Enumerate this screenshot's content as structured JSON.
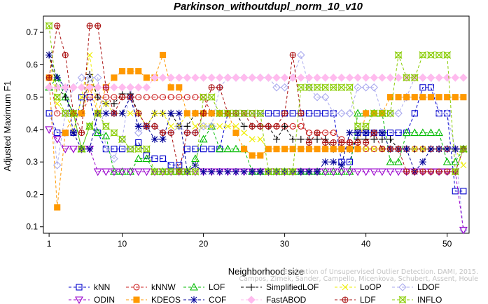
{
  "chart_data": {
    "type": "line",
    "title": "Parkinson_withoutdupl_norm_10_v10",
    "xlabel": "Neighborhood size",
    "ylabel": "Adjusted Maximum F1",
    "xlim": [
      1,
      52
    ],
    "ylim": [
      0.08,
      0.75
    ],
    "xticks": [
      1,
      10,
      20,
      30,
      40,
      50
    ],
    "yticks": [
      0.1,
      0.2,
      0.3,
      0.4,
      0.5,
      0.6,
      0.7
    ],
    "grid": false,
    "legend_position": "bottom",
    "x": [
      1,
      2,
      3,
      4,
      5,
      6,
      7,
      8,
      9,
      10,
      11,
      12,
      13,
      14,
      15,
      16,
      17,
      18,
      19,
      20,
      21,
      22,
      23,
      24,
      25,
      26,
      27,
      28,
      29,
      30,
      31,
      32,
      33,
      34,
      35,
      36,
      37,
      38,
      39,
      40,
      41,
      42,
      43,
      44,
      45,
      46,
      47,
      48,
      49,
      50,
      51,
      52
    ],
    "series": [
      {
        "name": "kNN",
        "color": "#0000cc",
        "marker": "square",
        "values": [
          0.45,
          0.39,
          0.39,
          0.39,
          0.5,
          0.5,
          0.39,
          0.34,
          0.34,
          0.34,
          0.34,
          0.36,
          0.32,
          0.31,
          0.31,
          0.29,
          0.29,
          0.34,
          0.34,
          0.34,
          0.34,
          0.34,
          0.45,
          0.45,
          0.45,
          0.45,
          0.45,
          0.45,
          0.45,
          0.45,
          0.45,
          0.45,
          0.45,
          0.45,
          0.45,
          0.45,
          0.3,
          0.3,
          0.39,
          0.39,
          0.39,
          0.39,
          0.39,
          0.39,
          0.39,
          0.45,
          0.53,
          0.53,
          0.45,
          0.45,
          0.21,
          0.21
        ]
      },
      {
        "name": "kNNW",
        "color": "#cc2222",
        "marker": "circle",
        "values": [
          0.56,
          0.45,
          0.45,
          0.45,
          0.45,
          0.5,
          0.5,
          0.5,
          0.5,
          0.5,
          0.5,
          0.5,
          0.5,
          0.5,
          0.5,
          0.5,
          0.5,
          0.5,
          0.5,
          0.5,
          0.45,
          0.45,
          0.45,
          0.45,
          0.45,
          0.45,
          0.41,
          0.41,
          0.41,
          0.41,
          0.41,
          0.41,
          0.39,
          0.39,
          0.39,
          0.39,
          0.37,
          0.36,
          0.34,
          0.34,
          0.34,
          0.34,
          0.34,
          0.34,
          0.34,
          0.34,
          0.34,
          0.34,
          0.34,
          0.34,
          0.34,
          0.34
        ]
      },
      {
        "name": "LOF",
        "color": "#00bb00",
        "marker": "triangle",
        "values": [
          0.53,
          0.56,
          0.5,
          0.45,
          0.34,
          0.41,
          0.39,
          0.38,
          0.27,
          0.27,
          0.27,
          0.31,
          0.31,
          0.27,
          0.27,
          0.27,
          0.27,
          0.27,
          0.31,
          0.37,
          0.41,
          0.34,
          0.34,
          0.34,
          0.34,
          0.27,
          0.27,
          0.27,
          0.27,
          0.27,
          0.27,
          0.27,
          0.27,
          0.27,
          0.27,
          0.27,
          0.27,
          0.27,
          0.45,
          0.45,
          0.45,
          0.45,
          0.3,
          0.3,
          0.39,
          0.39,
          0.39,
          0.39,
          0.39,
          0.3,
          0.3,
          0.34
        ]
      },
      {
        "name": "SimplifiedLOF",
        "color": "#000000",
        "marker": "plus",
        "values": [
          0.63,
          0.53,
          0.5,
          0.45,
          0.45,
          0.57,
          0.5,
          0.48,
          0.48,
          0.51,
          0.51,
          0.45,
          0.41,
          0.45,
          0.45,
          0.45,
          0.41,
          0.41,
          0.45,
          0.45,
          0.45,
          0.45,
          0.45,
          0.45,
          0.41,
          0.41,
          0.41,
          0.41,
          0.37,
          0.41,
          0.37,
          0.37,
          0.37,
          0.37,
          0.37,
          0.34,
          0.34,
          0.34,
          0.37,
          0.37,
          0.37,
          0.37,
          0.37,
          0.34,
          0.34,
          0.34,
          0.34,
          0.34,
          0.34,
          0.34,
          0.34,
          0.34
        ]
      },
      {
        "name": "LoOP",
        "color": "#eeee00",
        "marker": "x",
        "values": [
          0.63,
          0.48,
          0.45,
          0.39,
          0.5,
          0.63,
          0.45,
          0.48,
          0.45,
          0.45,
          0.45,
          0.45,
          0.41,
          0.45,
          0.45,
          0.41,
          0.41,
          0.45,
          0.41,
          0.41,
          0.41,
          0.41,
          0.41,
          0.41,
          0.39,
          0.37,
          0.37,
          0.34,
          0.34,
          0.34,
          0.34,
          0.34,
          0.34,
          0.34,
          0.34,
          0.34,
          0.34,
          0.34,
          0.34,
          0.34,
          0.34,
          0.34,
          0.34,
          0.34,
          0.34,
          0.34,
          0.34,
          0.34,
          0.34,
          0.34,
          0.34,
          0.29
        ]
      },
      {
        "name": "LDOF",
        "color": "#aaaaee",
        "marker": "diamond",
        "values": [
          0.53,
          0.29,
          0.45,
          0.53,
          0.56,
          0.56,
          0.56,
          0.34,
          0.31,
          0.37,
          0.53,
          0.39,
          0.41,
          0.41,
          0.39,
          0.39,
          0.41,
          0.39,
          0.39,
          0.41,
          0.41,
          0.53,
          0.56,
          0.56,
          0.56,
          0.56,
          0.56,
          0.56,
          0.53,
          0.53,
          0.56,
          0.63,
          0.53,
          0.5,
          0.5,
          0.45,
          0.45,
          0.45,
          0.53,
          0.53,
          0.53,
          0.45,
          0.45,
          0.45,
          0.5,
          0.56,
          0.56,
          0.56,
          0.45,
          0.45,
          0.34,
          0.09
        ]
      },
      {
        "name": "ODIN",
        "color": "#9900cc",
        "marker": "invtriangle",
        "values": [
          0.4,
          0.37,
          0.34,
          0.34,
          0.34,
          0.34,
          0.27,
          0.27,
          0.27,
          0.27,
          0.27,
          0.27,
          0.27,
          0.27,
          0.27,
          0.27,
          0.27,
          0.27,
          0.27,
          0.27,
          0.27,
          0.27,
          0.27,
          0.27,
          0.27,
          0.27,
          0.27,
          0.27,
          0.27,
          0.27,
          0.27,
          0.27,
          0.27,
          0.27,
          0.27,
          0.27,
          0.27,
          0.27,
          0.27,
          0.27,
          0.27,
          0.27,
          0.27,
          0.27,
          0.27,
          0.27,
          0.27,
          0.27,
          0.27,
          0.27,
          0.27,
          0.09
        ]
      },
      {
        "name": "KDEOS",
        "color": "#ff9900",
        "marker": "squarefill",
        "values": [
          0.56,
          0.16,
          0.39,
          0.45,
          0.45,
          0.53,
          0.45,
          0.53,
          0.56,
          0.58,
          0.58,
          0.58,
          0.56,
          0.56,
          0.63,
          0.53,
          0.53,
          0.45,
          0.45,
          0.45,
          0.45,
          0.45,
          0.45,
          0.39,
          0.34,
          0.32,
          0.32,
          0.34,
          0.34,
          0.34,
          0.34,
          0.34,
          0.34,
          0.34,
          0.34,
          0.34,
          0.34,
          0.34,
          0.34,
          0.45,
          0.45,
          0.45,
          0.5,
          0.5,
          0.5,
          0.5,
          0.5,
          0.5,
          0.5,
          0.5,
          0.5,
          0.5
        ]
      },
      {
        "name": "COF",
        "color": "#000099",
        "marker": "asterisk",
        "values": [
          0.63,
          0.56,
          0.53,
          0.39,
          0.34,
          0.34,
          0.45,
          0.45,
          0.45,
          0.45,
          0.5,
          0.41,
          0.41,
          0.37,
          0.37,
          0.45,
          0.45,
          0.27,
          0.29,
          0.27,
          0.27,
          0.27,
          0.27,
          0.27,
          0.27,
          0.27,
          0.27,
          0.27,
          0.27,
          0.27,
          0.27,
          0.27,
          0.27,
          0.27,
          0.3,
          0.3,
          0.29,
          0.39,
          0.39,
          0.39,
          0.39,
          0.39,
          0.34,
          0.34,
          0.34,
          0.27,
          0.3,
          0.34,
          0.34,
          0.34,
          0.34,
          0.34
        ]
      },
      {
        "name": "FastABOD",
        "color": "#ffbbee",
        "marker": "diamondfill",
        "values": [
          0.53,
          0.53,
          0.53,
          0.53,
          0.53,
          0.53,
          0.53,
          0.53,
          0.53,
          0.53,
          0.53,
          0.53,
          0.53,
          0.56,
          0.56,
          0.56,
          0.56,
          0.56,
          0.56,
          0.56,
          0.56,
          0.56,
          0.56,
          0.56,
          0.56,
          0.56,
          0.56,
          0.56,
          0.56,
          0.56,
          0.56,
          0.56,
          0.56,
          0.56,
          0.56,
          0.56,
          0.56,
          0.56,
          0.56,
          0.56,
          0.56,
          0.56,
          0.56,
          0.56,
          0.56,
          0.56,
          0.56,
          0.56,
          0.56,
          0.56,
          0.56,
          0.56
        ]
      },
      {
        "name": "LDF",
        "color": "#aa1111",
        "marker": "circleplus",
        "values": [
          0.56,
          0.72,
          0.63,
          0.45,
          0.39,
          0.72,
          0.72,
          0.53,
          0.45,
          0.5,
          0.5,
          0.45,
          0.41,
          0.41,
          0.39,
          0.39,
          0.27,
          0.39,
          0.39,
          0.45,
          0.53,
          0.53,
          0.45,
          0.45,
          0.45,
          0.41,
          0.41,
          0.41,
          0.41,
          0.45,
          0.63,
          0.45,
          0.36,
          0.39,
          0.36,
          0.36,
          0.36,
          0.36,
          0.36,
          0.36,
          0.39,
          0.34,
          0.34,
          0.34,
          0.27,
          0.27,
          0.27,
          0.27,
          0.27,
          0.27,
          0.27,
          0.34
        ]
      },
      {
        "name": "INFLO",
        "color": "#88cc00",
        "marker": "xsquare",
        "values": [
          0.72,
          0.5,
          0.45,
          0.45,
          0.34,
          0.41,
          0.45,
          0.41,
          0.39,
          0.37,
          0.34,
          0.34,
          0.34,
          0.27,
          0.27,
          0.27,
          0.27,
          0.27,
          0.27,
          0.5,
          0.5,
          0.45,
          0.45,
          0.45,
          0.45,
          0.45,
          0.45,
          0.27,
          0.27,
          0.27,
          0.27,
          0.53,
          0.53,
          0.53,
          0.53,
          0.53,
          0.53,
          0.53,
          0.41,
          0.41,
          0.45,
          0.45,
          0.45,
          0.63,
          0.56,
          0.56,
          0.63,
          0.63,
          0.63,
          0.63,
          0.27,
          0.34
        ]
      }
    ]
  },
  "watermark": {
    "line1": "Evaluation of Unsupervised Outlier Detection. DAMI, 2015.",
    "line2": "Campos, Zimek, Sander, Campello, Micenkova, Schubert, Assent, Houle"
  }
}
